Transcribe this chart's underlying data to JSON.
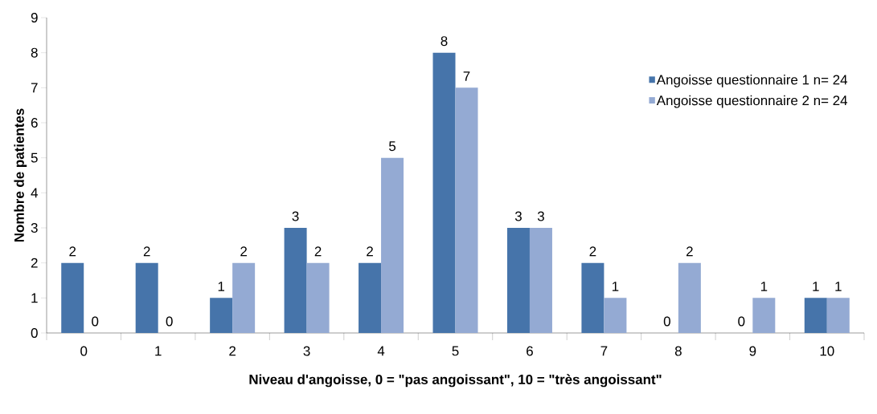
{
  "chart_data": {
    "type": "bar",
    "xlabel": "Niveau d'angoisse, 0 = \"pas angoissant\", 10 = \"très angoissant\"",
    "ylabel": "Nombre de patientes",
    "categories": [
      "0",
      "1",
      "2",
      "3",
      "4",
      "5",
      "6",
      "7",
      "8",
      "9",
      "10"
    ],
    "series": [
      {
        "name": "Angoisse questionnaire 1 n= 24",
        "color": "#4674aa",
        "values": [
          2,
          2,
          1,
          3,
          2,
          8,
          3,
          2,
          0,
          0,
          1
        ]
      },
      {
        "name": "Angoisse questionnaire 2 n= 24",
        "color": "#94aad3",
        "values": [
          0,
          0,
          2,
          2,
          5,
          7,
          3,
          1,
          2,
          1,
          1
        ]
      }
    ],
    "ylim": [
      0,
      9
    ],
    "yticks": [
      0,
      1,
      2,
      3,
      4,
      5,
      6,
      7,
      8,
      9
    ],
    "data_labels": true,
    "legend": "top right",
    "grid": false
  }
}
